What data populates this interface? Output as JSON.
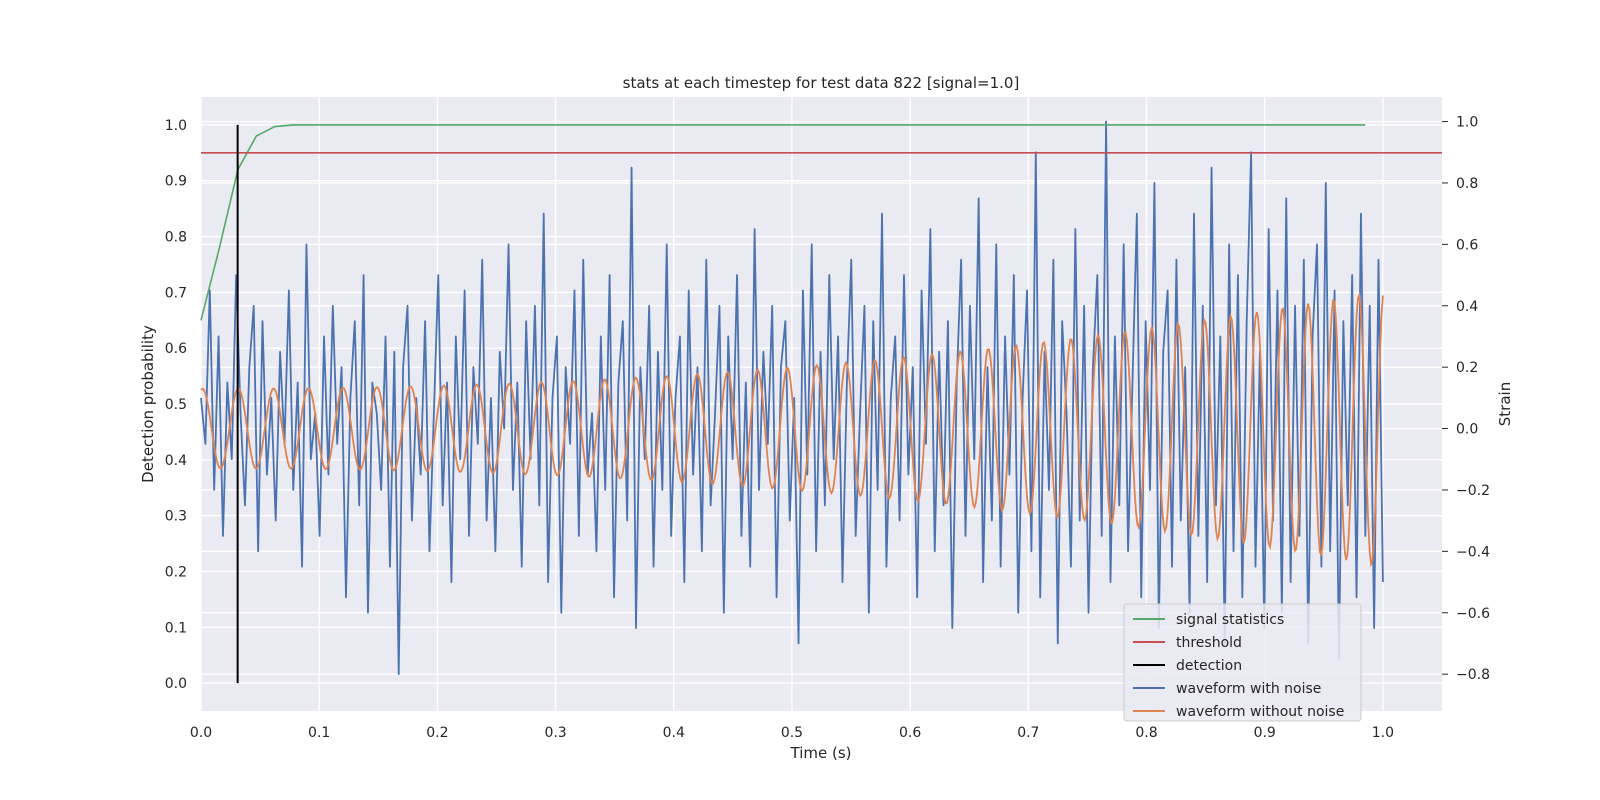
{
  "chart_data": {
    "type": "line",
    "title": "stats at each timestep for test data 822 [signal=1.0]",
    "xlabel": "Time (s)",
    "ylabel_left": "Detection probability",
    "ylabel_right": "Strain",
    "xlim": [
      0.0,
      1.05
    ],
    "ylim_left": [
      -0.05,
      1.05
    ],
    "ylim_right": [
      -0.92,
      1.08
    ],
    "x_ticks": [
      "0.0",
      "0.1",
      "0.2",
      "0.3",
      "0.4",
      "0.5",
      "0.6",
      "0.7",
      "0.8",
      "0.9",
      "1.0"
    ],
    "x_tick_values": [
      0.0,
      0.1,
      0.2,
      0.3,
      0.4,
      0.5,
      0.6,
      0.7,
      0.8,
      0.9,
      1.0
    ],
    "y_left_ticks": [
      "0.0",
      "0.1",
      "0.2",
      "0.3",
      "0.4",
      "0.5",
      "0.6",
      "0.7",
      "0.8",
      "0.9",
      "1.0"
    ],
    "y_left_tick_values": [
      0.0,
      0.1,
      0.2,
      0.3,
      0.4,
      0.5,
      0.6,
      0.7,
      0.8,
      0.9,
      1.0
    ],
    "y_right_ticks": [
      "−0.8",
      "−0.6",
      "−0.4",
      "−0.2",
      "0.0",
      "0.2",
      "0.4",
      "0.6",
      "0.8",
      "1.0"
    ],
    "y_right_tick_values": [
      -0.8,
      -0.6,
      -0.4,
      -0.2,
      0.0,
      0.2,
      0.4,
      0.6,
      0.8,
      1.0
    ],
    "grid": true,
    "legend_position": "bottom-right",
    "series": [
      {
        "name": "signal statistics",
        "axis": "left",
        "color": "#55a868",
        "x": [
          0.0,
          0.0156,
          0.0312,
          0.0468,
          0.0624,
          0.078,
          0.1,
          0.2,
          0.3,
          0.4,
          0.5,
          0.6,
          0.7,
          0.8,
          0.9,
          0.985
        ],
        "y": [
          0.65,
          0.78,
          0.92,
          0.98,
          0.997,
          1.0,
          1.0,
          1.0,
          1.0,
          1.0,
          1.0,
          1.0,
          1.0,
          1.0,
          1.0,
          1.0
        ]
      },
      {
        "name": "threshold",
        "axis": "left",
        "color": "#c44e52",
        "x": [
          0.0,
          1.05
        ],
        "y": [
          0.95,
          0.95
        ]
      },
      {
        "name": "detection",
        "axis": "left",
        "color": "#000000",
        "x": [
          0.031,
          0.031
        ],
        "y": [
          0.0,
          1.0
        ]
      },
      {
        "name": "waveform with noise",
        "axis": "right",
        "color": "#4c72b0",
        "x_start": 0.0,
        "x_end": 1.0,
        "y": [
          0.1,
          -0.05,
          0.45,
          -0.2,
          0.3,
          -0.35,
          0.15,
          -0.1,
          0.5,
          0.05,
          -0.25,
          0.2,
          0.4,
          -0.4,
          0.35,
          -0.15,
          0.1,
          -0.3,
          0.25,
          -0.05,
          0.45,
          -0.2,
          0.15,
          -0.45,
          0.6,
          -0.1,
          0.05,
          -0.35,
          0.3,
          -0.15,
          0.4,
          -0.05,
          0.2,
          -0.55,
          0.1,
          0.35,
          -0.25,
          0.5,
          -0.6,
          0.15,
          0.05,
          -0.2,
          0.3,
          -0.45,
          0.25,
          -0.8,
          0.2,
          0.4,
          -0.3,
          0.1,
          -0.15,
          0.35,
          -0.4,
          0.05,
          0.5,
          -0.25,
          0.15,
          -0.5,
          0.3,
          -0.1,
          0.45,
          -0.35,
          0.2,
          -0.05,
          0.55,
          -0.3,
          0.1,
          -0.4,
          0.25,
          0.0,
          0.6,
          -0.2,
          0.15,
          -0.45,
          0.35,
          -0.1,
          0.4,
          -0.25,
          0.7,
          -0.5,
          0.1,
          0.3,
          -0.6,
          0.2,
          -0.05,
          0.45,
          -0.35,
          0.55,
          -0.15,
          0.05,
          -0.4,
          0.3,
          -0.2,
          0.5,
          -0.55,
          0.15,
          0.35,
          -0.3,
          0.85,
          -0.65,
          0.2,
          -0.1,
          0.4,
          -0.45,
          0.25,
          -0.2,
          0.6,
          -0.35,
          0.1,
          0.3,
          -0.5,
          0.45,
          -0.15,
          0.2,
          -0.4,
          0.55,
          -0.25,
          0.05,
          0.4,
          -0.6,
          0.3,
          -0.1,
          0.5,
          -0.35,
          0.15,
          -0.45,
          0.65,
          -0.2,
          0.25,
          -0.05,
          0.4,
          -0.55,
          0.2,
          0.35,
          -0.3,
          0.1,
          -0.7,
          0.45,
          -0.15,
          0.6,
          -0.4,
          0.25,
          -0.25,
          0.5,
          -0.1,
          0.3,
          -0.5,
          0.15,
          0.55,
          -0.35,
          0.05,
          0.4,
          -0.6,
          0.35,
          -0.2,
          0.7,
          -0.45,
          0.1,
          0.3,
          -0.3,
          0.5,
          -0.15,
          0.2,
          -0.55,
          0.45,
          -0.05,
          0.65,
          -0.4,
          0.25,
          -0.25,
          0.35,
          -0.65,
          0.15,
          0.55,
          -0.35,
          0.4,
          -0.1,
          0.75,
          -0.5,
          0.2,
          -0.3,
          0.6,
          -0.45,
          0.3,
          -0.15,
          0.5,
          -0.6,
          0.1,
          0.45,
          -0.4,
          0.9,
          -0.55,
          0.25,
          -0.2,
          0.55,
          -0.7,
          0.35,
          0.05,
          -0.45,
          0.65,
          -0.3,
          0.4,
          -0.6,
          0.2,
          0.5,
          -0.35,
          1.0,
          -0.5,
          0.3,
          -0.25,
          0.6,
          -0.4,
          0.15,
          0.7,
          -0.55,
          0.35,
          -0.2,
          0.8,
          -0.65,
          0.25,
          0.45,
          -0.45,
          0.55,
          -0.3,
          0.2,
          -0.6,
          0.7,
          -0.35,
          0.4,
          -0.5,
          0.85,
          -0.25,
          0.3,
          -0.7,
          0.6,
          -0.4,
          0.5,
          -0.55,
          0.35,
          0.9,
          -0.45,
          0.25,
          -0.65,
          0.65,
          -0.3,
          0.45,
          -0.6,
          0.75,
          -0.5,
          0.4,
          -0.35,
          0.55,
          -0.7,
          0.3,
          0.6,
          -0.45,
          0.8,
          -0.4,
          0.45,
          -0.75,
          0.35,
          -0.25,
          0.5,
          -0.55,
          0.7,
          -0.35,
          0.4,
          -0.65,
          0.55,
          -0.5
        ]
      },
      {
        "name": "waveform without noise",
        "axis": "right",
        "color": "#dd8452",
        "x_start": 0.0,
        "x_end": 1.0,
        "model": "chirp",
        "amp_start": 0.13,
        "amp_end": 0.45,
        "cycles": 40
      }
    ]
  }
}
